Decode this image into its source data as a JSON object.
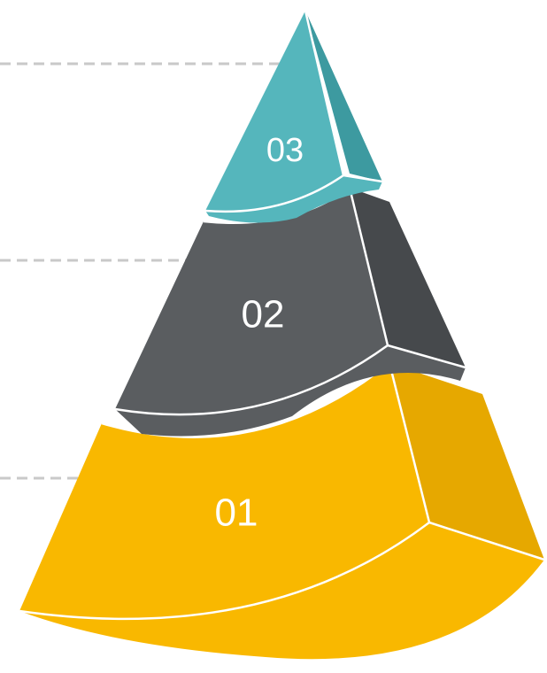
{
  "diagram": {
    "type": "layered-pyramid",
    "tiers": [
      {
        "label": "03",
        "color": "#55b6bc",
        "color_dark": "#3d9aa0"
      },
      {
        "label": "02",
        "color": "#5a5d60",
        "color_dark": "#46494c"
      },
      {
        "label": "01",
        "color": "#f9b800",
        "color_dark": "#e6a800"
      }
    ],
    "guide_color": "#c9c9c9"
  }
}
